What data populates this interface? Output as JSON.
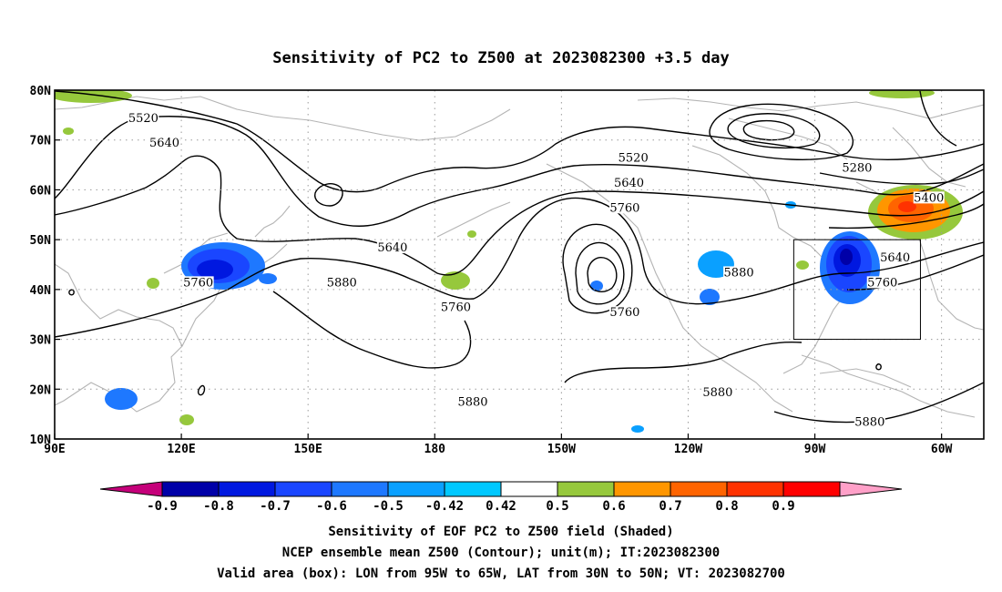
{
  "title": "Sensitivity of PC2 to Z500 at 2023082300 +3.5 day",
  "axes": {
    "lon_range": [
      90,
      310
    ],
    "lat_range": [
      10,
      80
    ],
    "lon_ticks": [
      {
        "value": 90,
        "label": "90E"
      },
      {
        "value": 120,
        "label": "120E"
      },
      {
        "value": 150,
        "label": "150E"
      },
      {
        "value": 180,
        "label": "180"
      },
      {
        "value": 210,
        "label": "150W"
      },
      {
        "value": 240,
        "label": "120W"
      },
      {
        "value": 270,
        "label": "90W"
      },
      {
        "value": 300,
        "label": "60W"
      }
    ],
    "lat_ticks": [
      {
        "value": 10,
        "label": "10N"
      },
      {
        "value": 20,
        "label": "20N"
      },
      {
        "value": 30,
        "label": "30N"
      },
      {
        "value": 40,
        "label": "40N"
      },
      {
        "value": 50,
        "label": "50N"
      },
      {
        "value": 60,
        "label": "60N"
      },
      {
        "value": 70,
        "label": "70N"
      },
      {
        "value": 80,
        "label": "80N"
      }
    ],
    "gridlines": "dotted"
  },
  "valid_box": {
    "lon": [
      265,
      295
    ],
    "lat": [
      30,
      50
    ]
  },
  "contour_labels": [
    {
      "text": "5520",
      "lon": 111,
      "lat": 74
    },
    {
      "text": "5640",
      "lon": 116,
      "lat": 69
    },
    {
      "text": "5520",
      "lon": 227,
      "lat": 66
    },
    {
      "text": "5280",
      "lon": 280,
      "lat": 64
    },
    {
      "text": "5640",
      "lon": 226,
      "lat": 61
    },
    {
      "text": "5400",
      "lon": 297,
      "lat": 58
    },
    {
      "text": "5760",
      "lon": 225,
      "lat": 56
    },
    {
      "text": "5640",
      "lon": 170,
      "lat": 48
    },
    {
      "text": "5640",
      "lon": 289,
      "lat": 46
    },
    {
      "text": "5880",
      "lon": 252,
      "lat": 43
    },
    {
      "text": "5880",
      "lon": 158,
      "lat": 41
    },
    {
      "text": "5760",
      "lon": 124,
      "lat": 41
    },
    {
      "text": "5760",
      "lon": 286,
      "lat": 41
    },
    {
      "text": "5760",
      "lon": 185,
      "lat": 36
    },
    {
      "text": "5760",
      "lon": 225,
      "lat": 35
    },
    {
      "text": "5880",
      "lon": 247,
      "lat": 19
    },
    {
      "text": "5880",
      "lon": 189,
      "lat": 17
    },
    {
      "text": "5880",
      "lon": 283,
      "lat": 13
    }
  ],
  "colorbar": {
    "labels": [
      "-0.9",
      "-0.8",
      "-0.7",
      "-0.6",
      "-0.5",
      "-0.42",
      "0.42",
      "0.5",
      "0.6",
      "0.7",
      "0.8",
      "0.9"
    ],
    "colors": [
      "#c5007a",
      "#0000a8",
      "#0018e0",
      "#1a46ff",
      "#1e78ff",
      "#0aa0ff",
      "#00c8ff",
      "#ffffff",
      "#96c83c",
      "#ff9600",
      "#ff6400",
      "#ff3200",
      "#ff0000",
      "#ffa0c8"
    ]
  },
  "captions": [
    "Sensitivity of EOF PC2 to Z500 field (Shaded)",
    "NCEP ensemble mean Z500 (Contour); unit(m); IT:2023082300",
    "Valid area (box): LON from 95W to 65W, LAT from 30N to 50N; VT: 2023082700"
  ]
}
